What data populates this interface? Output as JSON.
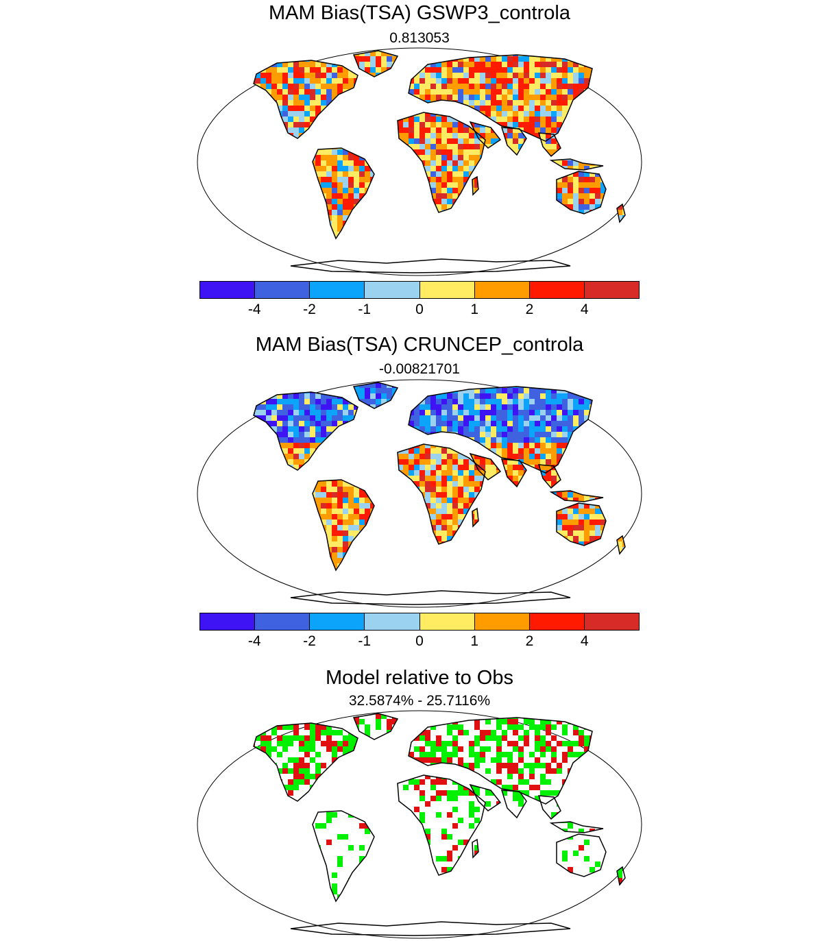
{
  "panels": [
    {
      "title": "MAM Bias(TSA) GSWP3_controla",
      "subtitle": "0.813053"
    },
    {
      "title": "MAM Bias(TSA) CRUNCEP_controla",
      "subtitle": "-0.00821701"
    },
    {
      "title": "Model relative to Obs",
      "subtitle": "32.5874% - 25.7116%"
    }
  ],
  "colorbar": {
    "colors": [
      "#3e14f5",
      "#3f62e0",
      "#0ba4fa",
      "#9ad2ef",
      "#ffec63",
      "#ff9d00",
      "#ff1a00",
      "#d62b27"
    ],
    "labels": [
      "-4",
      "-2",
      "-1",
      "0",
      "1",
      "2",
      "4"
    ]
  },
  "map_colors": {
    "land_outline": "#000000",
    "good": "#00f000",
    "bad": "#e01010"
  }
}
